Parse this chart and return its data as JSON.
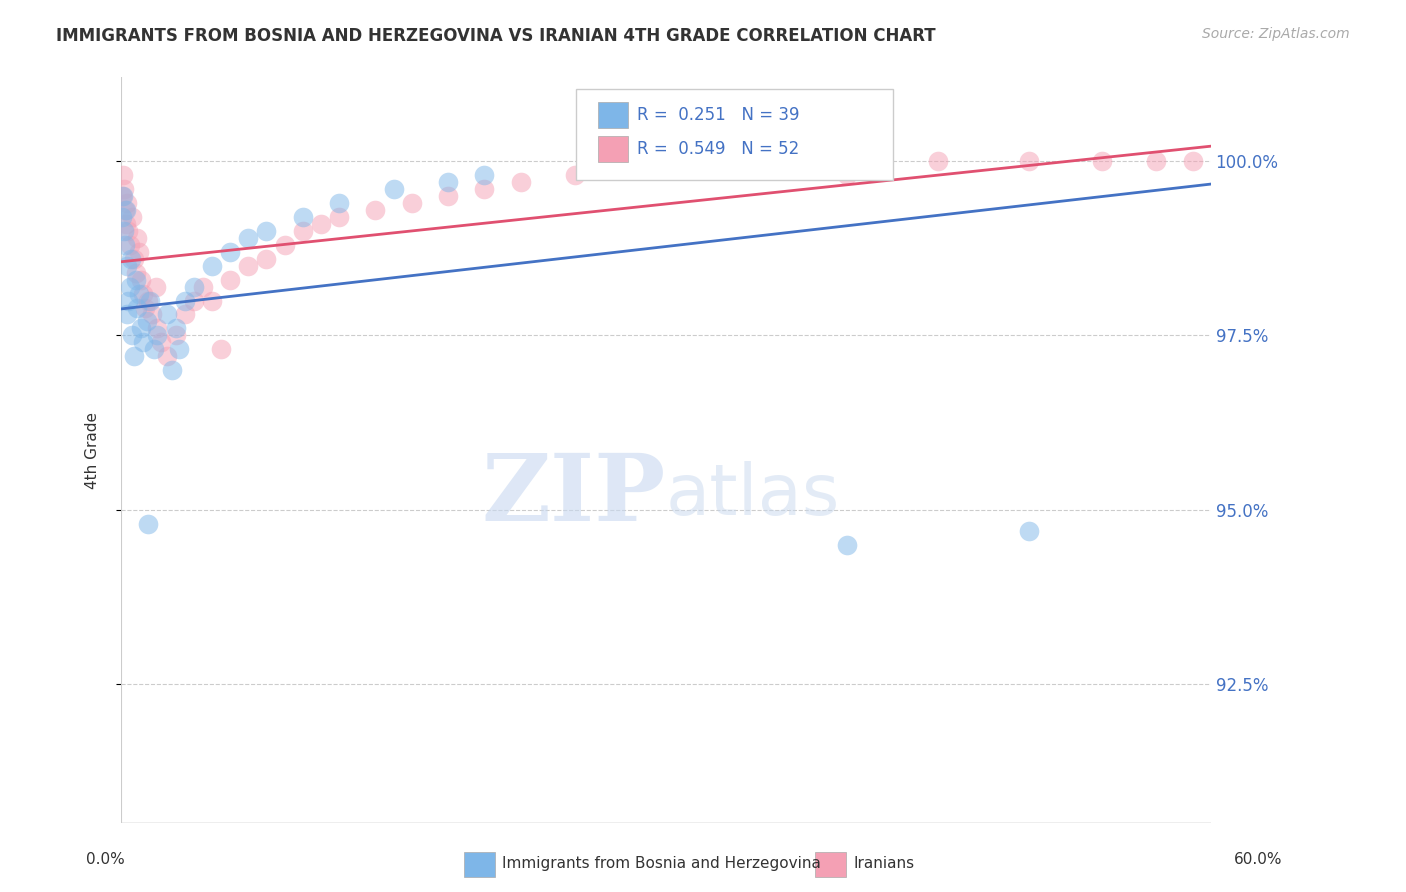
{
  "title": "IMMIGRANTS FROM BOSNIA AND HERZEGOVINA VS IRANIAN 4TH GRADE CORRELATION CHART",
  "source": "Source: ZipAtlas.com",
  "ylabel": "4th Grade",
  "ylabel_values": [
    92.5,
    95.0,
    97.5,
    100.0
  ],
  "xmin": 0.0,
  "xmax": 60.0,
  "ymin": 90.5,
  "ymax": 101.2,
  "bosnia_R": 0.251,
  "bosnia_N": 39,
  "iranian_R": 0.549,
  "iranian_N": 52,
  "bosnia_color": "#7EB6E8",
  "iranian_color": "#F4A0B4",
  "bosnia_line_color": "#4472C4",
  "iranian_line_color": "#E05070",
  "legend_label_bosnia": "Immigrants from Bosnia and Herzegovina",
  "legend_label_iranian": "Iranians",
  "bosnia_x": [
    0.05,
    0.1,
    0.15,
    0.2,
    0.25,
    0.3,
    0.35,
    0.4,
    0.5,
    0.55,
    0.6,
    0.7,
    0.8,
    0.9,
    1.0,
    1.1,
    1.2,
    1.4,
    1.6,
    1.8,
    2.0,
    2.5,
    3.0,
    3.5,
    4.0,
    5.0,
    6.0,
    7.0,
    8.0,
    10.0,
    12.0,
    15.0,
    18.0,
    20.0,
    2.8,
    3.2,
    1.5,
    40.0,
    50.0
  ],
  "bosnia_y": [
    99.2,
    99.5,
    99.0,
    98.8,
    99.3,
    98.5,
    97.8,
    98.0,
    98.2,
    98.6,
    97.5,
    97.2,
    98.3,
    97.9,
    98.1,
    97.6,
    97.4,
    97.7,
    98.0,
    97.3,
    97.5,
    97.8,
    97.6,
    98.0,
    98.2,
    98.5,
    98.7,
    98.9,
    99.0,
    99.2,
    99.4,
    99.6,
    99.7,
    99.8,
    97.0,
    97.3,
    94.8,
    94.5,
    94.7
  ],
  "iranian_x": [
    0.05,
    0.1,
    0.15,
    0.2,
    0.25,
    0.3,
    0.4,
    0.5,
    0.6,
    0.7,
    0.8,
    0.9,
    1.0,
    1.1,
    1.2,
    1.3,
    1.5,
    1.7,
    1.9,
    2.0,
    2.2,
    2.5,
    3.0,
    3.5,
    4.0,
    4.5,
    5.0,
    5.5,
    6.0,
    7.0,
    8.0,
    9.0,
    10.0,
    11.0,
    12.0,
    14.0,
    16.0,
    18.0,
    20.0,
    22.0,
    25.0,
    28.0,
    30.0,
    33.0,
    35.0,
    38.0,
    40.0,
    45.0,
    50.0,
    54.0,
    57.0,
    59.0
  ],
  "iranian_y": [
    99.5,
    99.8,
    99.6,
    99.3,
    99.1,
    99.4,
    99.0,
    98.8,
    99.2,
    98.6,
    98.4,
    98.9,
    98.7,
    98.3,
    98.1,
    97.9,
    98.0,
    97.8,
    98.2,
    97.6,
    97.4,
    97.2,
    97.5,
    97.8,
    98.0,
    98.2,
    98.0,
    97.3,
    98.3,
    98.5,
    98.6,
    98.8,
    99.0,
    99.1,
    99.2,
    99.3,
    99.4,
    99.5,
    99.6,
    99.7,
    99.8,
    99.9,
    100.0,
    100.0,
    100.0,
    100.0,
    99.8,
    100.0,
    100.0,
    100.0,
    100.0,
    100.0
  ],
  "watermark_zip": "ZIP",
  "watermark_atlas": "atlas",
  "background_color": "#FFFFFF"
}
